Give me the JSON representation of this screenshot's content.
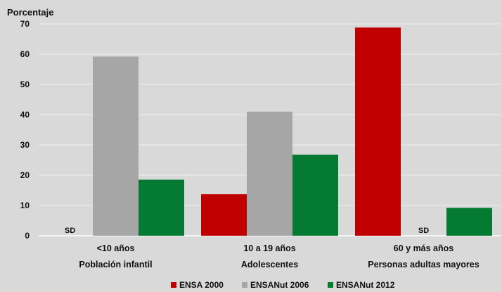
{
  "chart_data": {
    "type": "bar",
    "ylabel": "Porcentaje",
    "ylim": [
      0,
      70
    ],
    "yticks": [
      0,
      10,
      20,
      30,
      40,
      50,
      60,
      70
    ],
    "grid": true,
    "legend_position": "bottom",
    "categories": [
      {
        "line1": "<10 años",
        "line2": "Población infantil"
      },
      {
        "line1": "10 a 19 años",
        "line2": "Adolescentes"
      },
      {
        "line1": "60 y más años",
        "line2": "Personas adultas mayores"
      }
    ],
    "series": [
      {
        "name": "ENSA 2000",
        "color": "#c00000",
        "values": [
          null,
          13.7,
          68.8
        ]
      },
      {
        "name": "ENSANut 2006",
        "color": "#a6a6a6",
        "values": [
          59.2,
          41.0,
          null
        ]
      },
      {
        "name": "ENSANut 2012",
        "color": "#047a33",
        "values": [
          18.5,
          26.8,
          9.2
        ]
      }
    ],
    "missing_label": "SD"
  }
}
